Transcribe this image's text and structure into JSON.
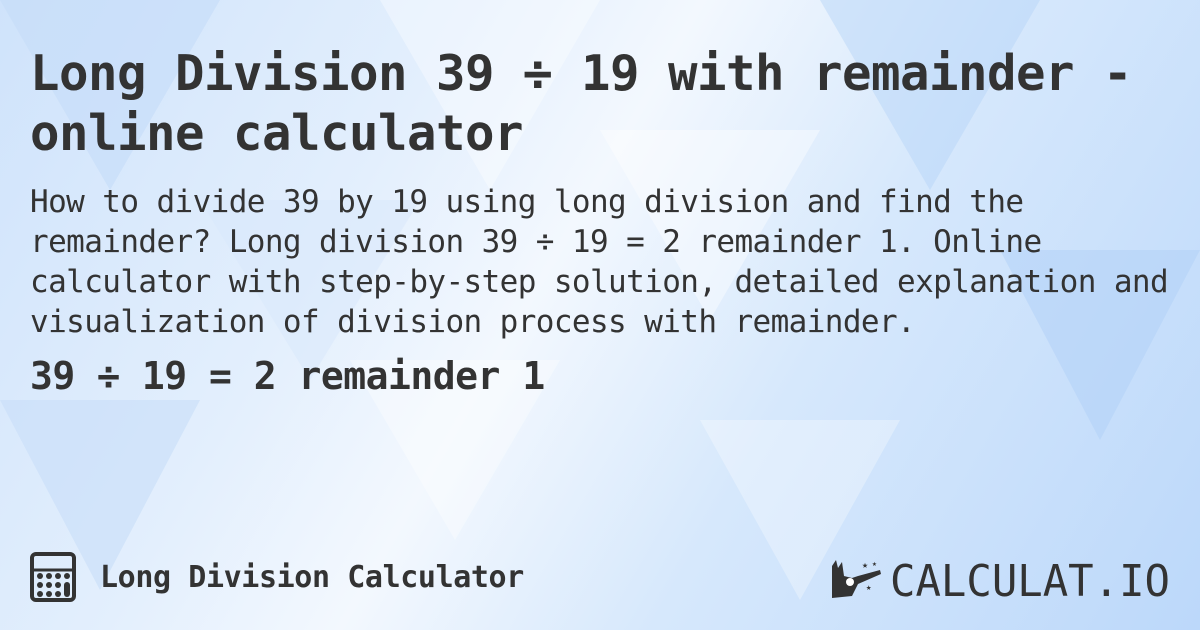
{
  "title": "Long Division 39 ÷ 19 with remainder - online calculator",
  "description": "How to divide 39 by 19 using long division and find the remainder? Long division 39 ÷ 19 = 2 remainder 1. Online calculator with step-by-step solution, detailed explanation and visualization of division process with remainder.",
  "result": "39 ÷ 19 = 2 remainder 1",
  "footer": {
    "icon": "calculator-icon",
    "label": "Long Division Calculator"
  },
  "logo": {
    "text": "CALCULAT.IO",
    "icon": "magic-hand-icon"
  },
  "colors": {
    "text": "#333333",
    "background": "#d6e8fc"
  }
}
